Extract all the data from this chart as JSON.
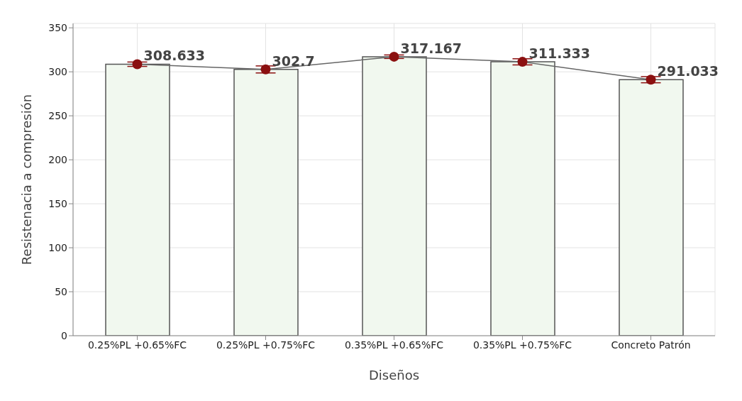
{
  "chart_data": {
    "type": "bar",
    "xlabel": "Diseños",
    "ylabel": "Resistenacia a compresión",
    "categories": [
      "0.25%PL +0.65%FC",
      "0.25%PL +0.75%FC",
      "0.35%PL +0.65%FC",
      "0.35%PL +0.75%FC",
      "Concreto Patrón"
    ],
    "series": [
      {
        "color": "#f1f8ef",
        "values": [
          308.633,
          302.7,
          317.167,
          311.333,
          291.033
        ]
      },
      {
        "type": "line",
        "color": "#8b1010",
        "values": [
          308.633,
          302.7,
          317.167,
          311.333,
          291.033
        ],
        "errors": [
          2.5,
          4,
          2,
          3.5,
          3.5
        ],
        "value_labels": [
          "308.633",
          "302.7",
          "317.167",
          "311.333",
          "291.033"
        ]
      }
    ],
    "marker": "circle",
    "ylim": [
      0,
      355
    ],
    "yticks": [
      0,
      50,
      100,
      150,
      200,
      250,
      300,
      350
    ],
    "grid": true
  }
}
